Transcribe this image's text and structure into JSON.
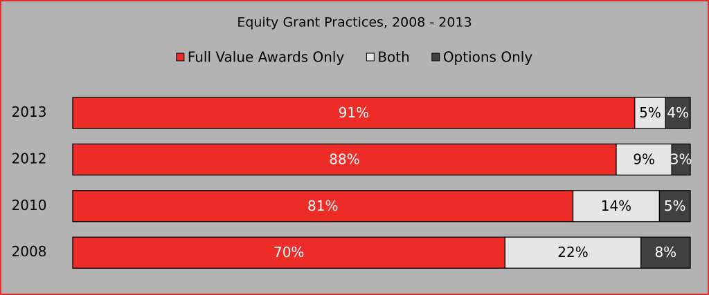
{
  "chart_data": {
    "type": "stacked-bar-horizontal",
    "title": "Equity Grant Practices, 2008 - 2013",
    "categories": [
      "2013",
      "2012",
      "2010",
      "2008"
    ],
    "series": [
      {
        "name": "Full Value Awards Only",
        "color": "#ee2c27",
        "values": [
          91,
          88,
          81,
          70
        ],
        "value_labels": [
          "91%",
          "88%",
          "81%",
          "70%"
        ]
      },
      {
        "name": "Both",
        "color": "#e6e6e6",
        "values": [
          5,
          9,
          14,
          22
        ],
        "value_labels": [
          "5%",
          "9%",
          "14%",
          "22%"
        ]
      },
      {
        "name": "Options Only",
        "color": "#404040",
        "values": [
          4,
          3,
          5,
          8
        ],
        "value_labels": [
          "4%",
          "3%",
          "5%",
          "8%"
        ]
      }
    ],
    "xlim": [
      0,
      100
    ],
    "legend": "top"
  }
}
